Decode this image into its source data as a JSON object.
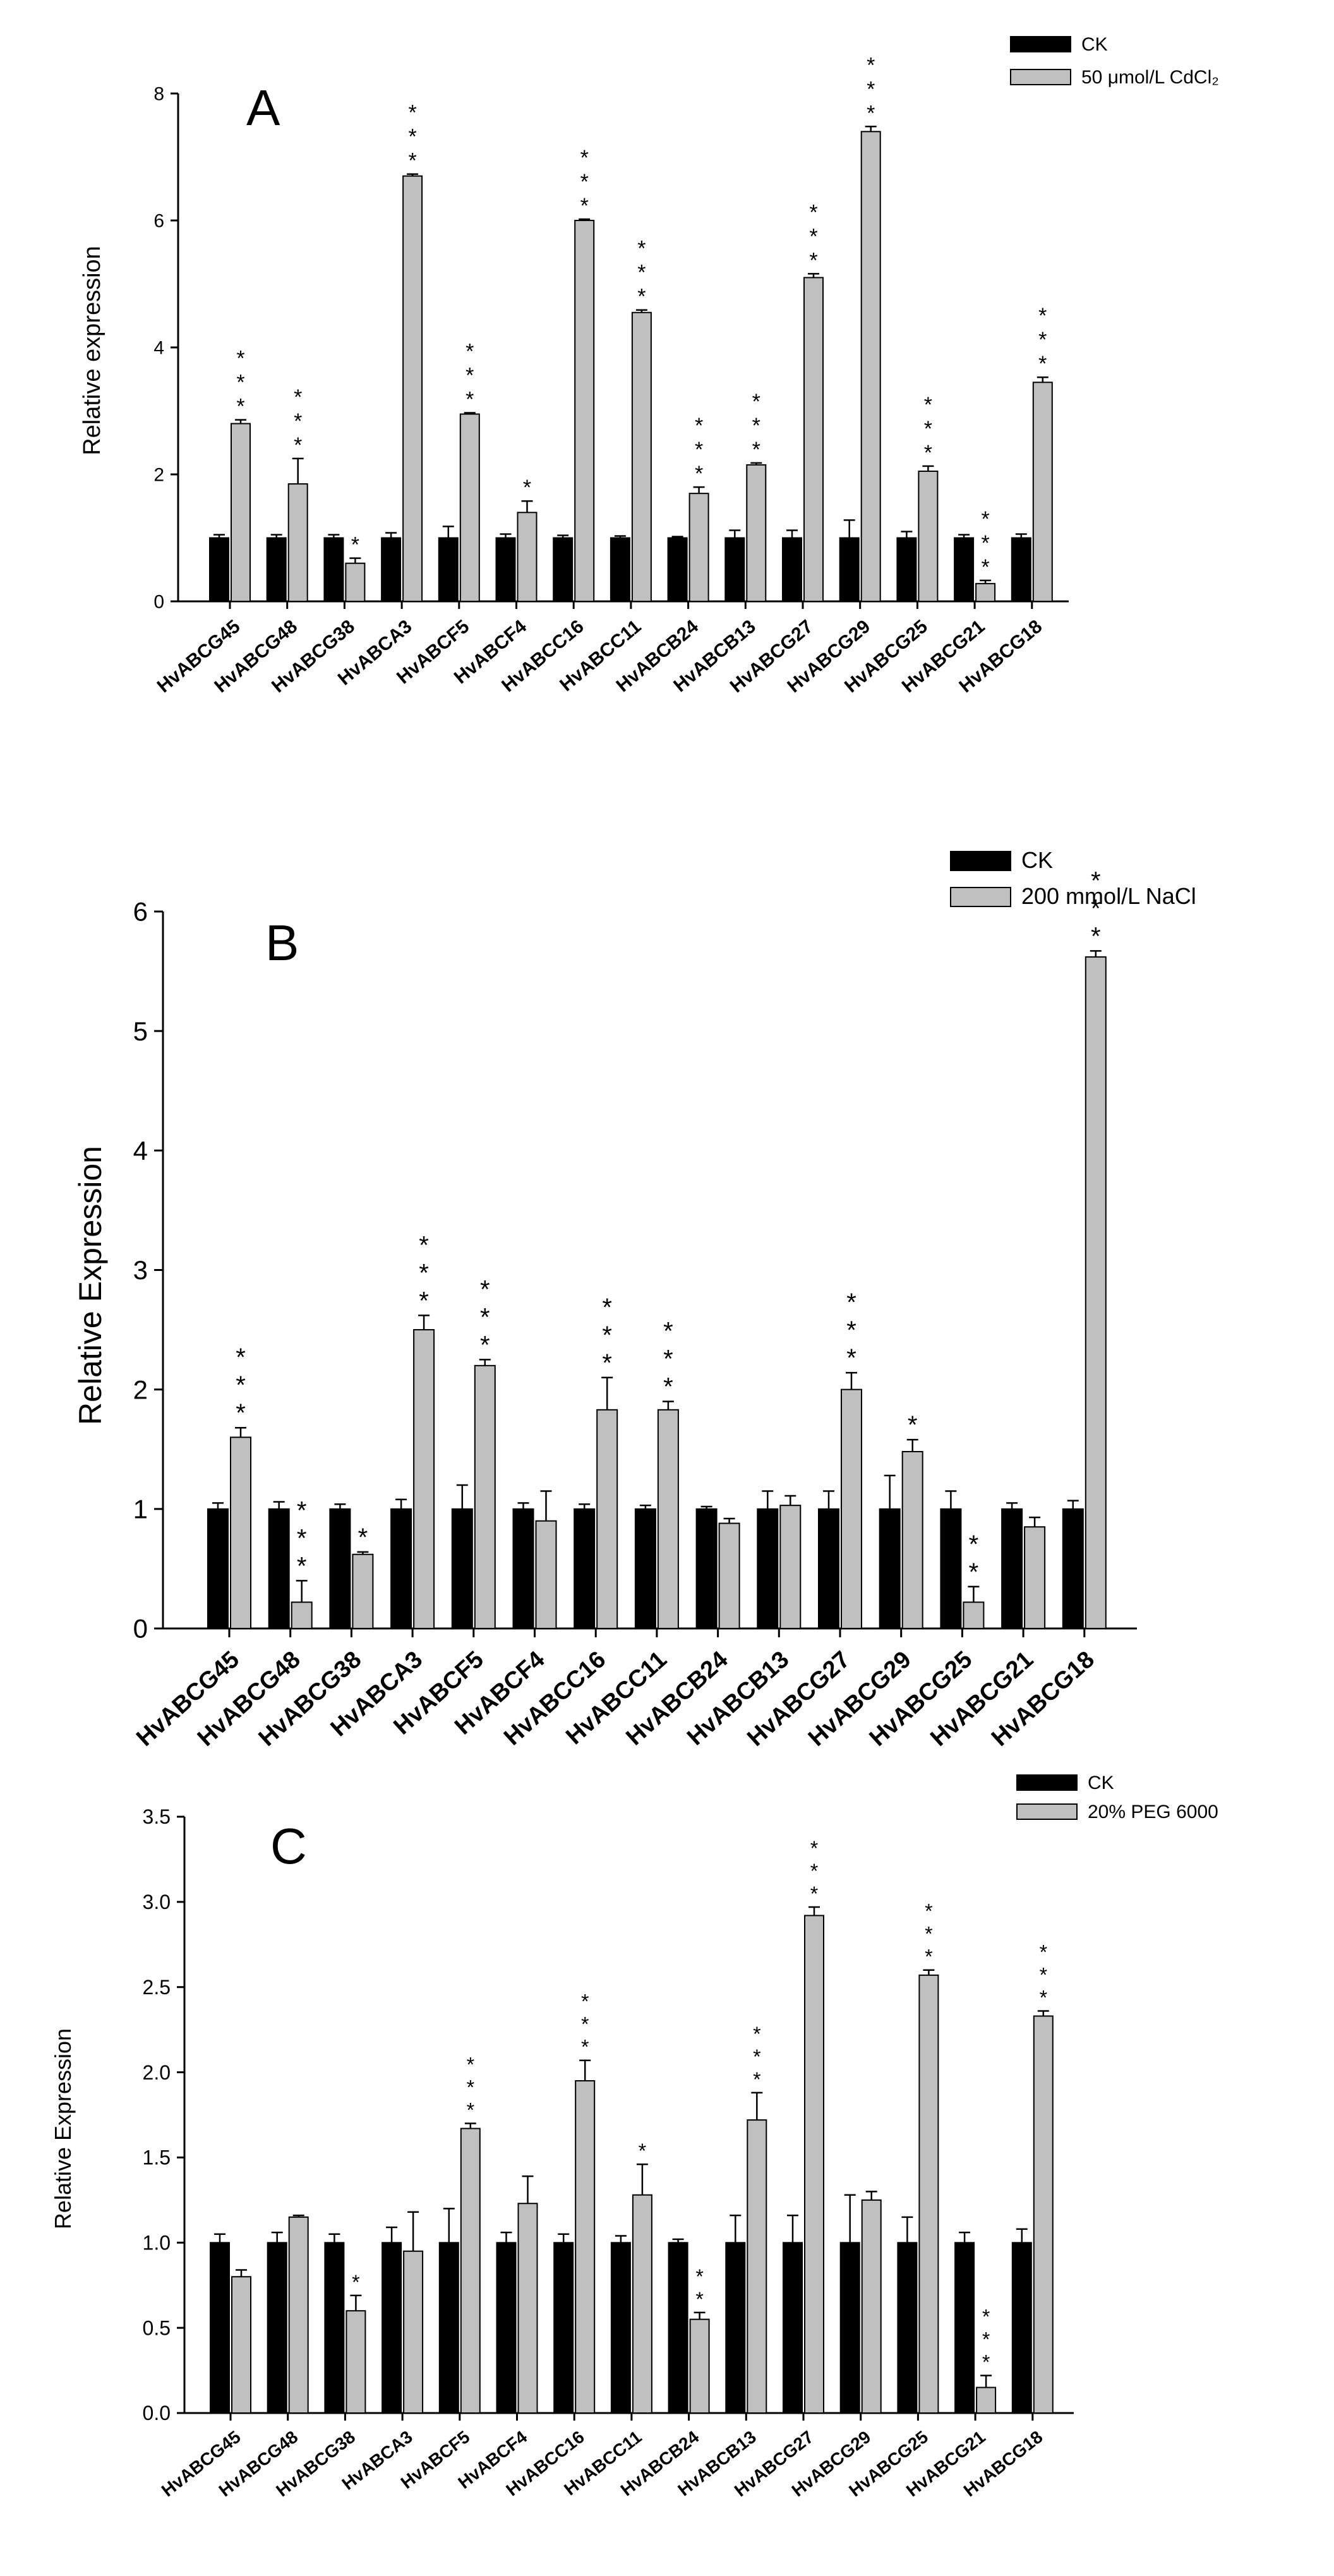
{
  "colors": {
    "ck": "#000000",
    "treatment": "#c0c0c0",
    "axis": "#000000",
    "background": "#ffffff"
  },
  "chart_data": [
    {
      "type": "bar",
      "panel_label": "A",
      "ylabel": "Relative expression",
      "ylim": [
        0,
        8
      ],
      "yticks": [
        0,
        2,
        4,
        6,
        8
      ],
      "ytick_labels": [
        "0",
        "2",
        "4",
        "6",
        "8"
      ],
      "categories": [
        "HvABCG45",
        "HvABCG48",
        "HvABCG38",
        "HvABCA3",
        "HvABCF5",
        "HvABCF4",
        "HvABCC16",
        "HvABCC11",
        "HvABCB24",
        "HvABCB13",
        "HvABCG27",
        "HvABCG29",
        "HvABCG25",
        "HvABCG21",
        "HvABCG18"
      ],
      "legend": [
        "CK",
        "50 μmol/L CdCl₂"
      ],
      "series": [
        {
          "name": "CK",
          "values": [
            1,
            1,
            1,
            1,
            1,
            1,
            1,
            1,
            1,
            1,
            1,
            1,
            1,
            1,
            1
          ],
          "errors": [
            0.05,
            0.05,
            0.05,
            0.08,
            0.18,
            0.06,
            0.04,
            0.03,
            0.02,
            0.12,
            0.12,
            0.28,
            0.1,
            0.05,
            0.06
          ]
        },
        {
          "name": "50 μmol/L CdCl₂",
          "values": [
            2.8,
            1.85,
            0.6,
            6.7,
            2.95,
            1.4,
            6.0,
            4.55,
            1.7,
            2.15,
            5.1,
            7.4,
            2.05,
            0.28,
            3.45
          ],
          "errors": [
            0.06,
            0.4,
            0.08,
            0.03,
            0.02,
            0.18,
            0.02,
            0.04,
            0.1,
            0.03,
            0.06,
            0.08,
            0.08,
            0.05,
            0.08
          ]
        }
      ],
      "significance": [
        "***",
        "***",
        "*",
        "***",
        "***",
        "*",
        "***",
        "***",
        "***",
        "***",
        "***",
        "***",
        "***",
        "***",
        "***"
      ]
    },
    {
      "type": "bar",
      "panel_label": "B",
      "ylabel": "Relative Expression",
      "ylim": [
        0,
        6
      ],
      "yticks": [
        0,
        1,
        2,
        3,
        4,
        5,
        6
      ],
      "ytick_labels": [
        "0",
        "1",
        "2",
        "3",
        "4",
        "5",
        "6"
      ],
      "categories": [
        "HvABCG45",
        "HvABCG48",
        "HvABCG38",
        "HvABCA3",
        "HvABCF5",
        "HvABCF4",
        "HvABCC16",
        "HvABCC11",
        "HvABCB24",
        "HvABCB13",
        "HvABCG27",
        "HvABCG29",
        "HvABCG25",
        "HvABCG21",
        "HvABCG18"
      ],
      "legend": [
        "CK",
        "200 mmol/L NaCl"
      ],
      "series": [
        {
          "name": "CK",
          "values": [
            1,
            1,
            1,
            1,
            1,
            1,
            1,
            1,
            1,
            1,
            1,
            1,
            1,
            1,
            1
          ],
          "errors": [
            0.05,
            0.06,
            0.04,
            0.08,
            0.2,
            0.05,
            0.04,
            0.03,
            0.02,
            0.15,
            0.15,
            0.28,
            0.15,
            0.05,
            0.07
          ]
        },
        {
          "name": "200 mmol/L NaCl",
          "values": [
            1.6,
            0.22,
            0.62,
            2.5,
            2.2,
            0.9,
            1.83,
            1.83,
            0.88,
            1.03,
            2.0,
            1.48,
            0.22,
            0.85,
            5.62
          ]
        },
        {
          "name": "200 mmol/L NaCl error",
          "values": [
            0.08,
            0.18,
            0.02,
            0.12,
            0.05,
            0.25,
            0.27,
            0.07,
            0.04,
            0.08,
            0.14,
            0.1,
            0.13,
            0.08,
            0.05
          ]
        }
      ],
      "significance": [
        "***",
        "***",
        "*",
        "***",
        "***",
        "",
        "***",
        "***",
        "",
        "",
        "***",
        "*",
        "**",
        "",
        "***"
      ]
    },
    {
      "type": "bar",
      "panel_label": "C",
      "ylabel": "Relative Expression",
      "ylim": [
        0,
        3.5
      ],
      "yticks": [
        0,
        0.5,
        1,
        1.5,
        2,
        2.5,
        3,
        3.5
      ],
      "ytick_labels": [
        "0.0",
        "0.5",
        "1.0",
        "1.5",
        "2.0",
        "2.5",
        "3.0",
        "3.5"
      ],
      "categories": [
        "HvABCG45",
        "HvABCG48",
        "HvABCG38",
        "HvABCA3",
        "HvABCF5",
        "HvABCF4",
        "HvABCC16",
        "HvABCC11",
        "HvABCB24",
        "HvABCB13",
        "HvABCG27",
        "HvABCG29",
        "HvABCG25",
        "HvABCG21",
        "HvABCG18"
      ],
      "legend": [
        "CK",
        "20% PEG 6000"
      ],
      "series": [
        {
          "name": "CK",
          "values": [
            1,
            1,
            1,
            1,
            1,
            1,
            1,
            1,
            1,
            1,
            1,
            1,
            1,
            1,
            1
          ],
          "errors": [
            0.05,
            0.06,
            0.05,
            0.09,
            0.2,
            0.06,
            0.05,
            0.04,
            0.02,
            0.16,
            0.16,
            0.28,
            0.15,
            0.06,
            0.08
          ]
        },
        {
          "name": "20% PEG 6000",
          "values": [
            0.8,
            1.15,
            0.6,
            0.95,
            1.67,
            1.23,
            1.95,
            1.28,
            0.55,
            1.72,
            2.92,
            1.25,
            2.57,
            0.15,
            2.33
          ],
          "errors": [
            0.04,
            0.01,
            0.09,
            0.23,
            0.03,
            0.16,
            0.12,
            0.18,
            0.04,
            0.16,
            0.05,
            0.05,
            0.03,
            0.07,
            0.03
          ]
        }
      ],
      "significance": [
        "",
        "",
        "*",
        "",
        "***",
        "",
        "***",
        "*",
        "**",
        "***",
        "***",
        "",
        "***",
        "***",
        "***"
      ]
    }
  ]
}
